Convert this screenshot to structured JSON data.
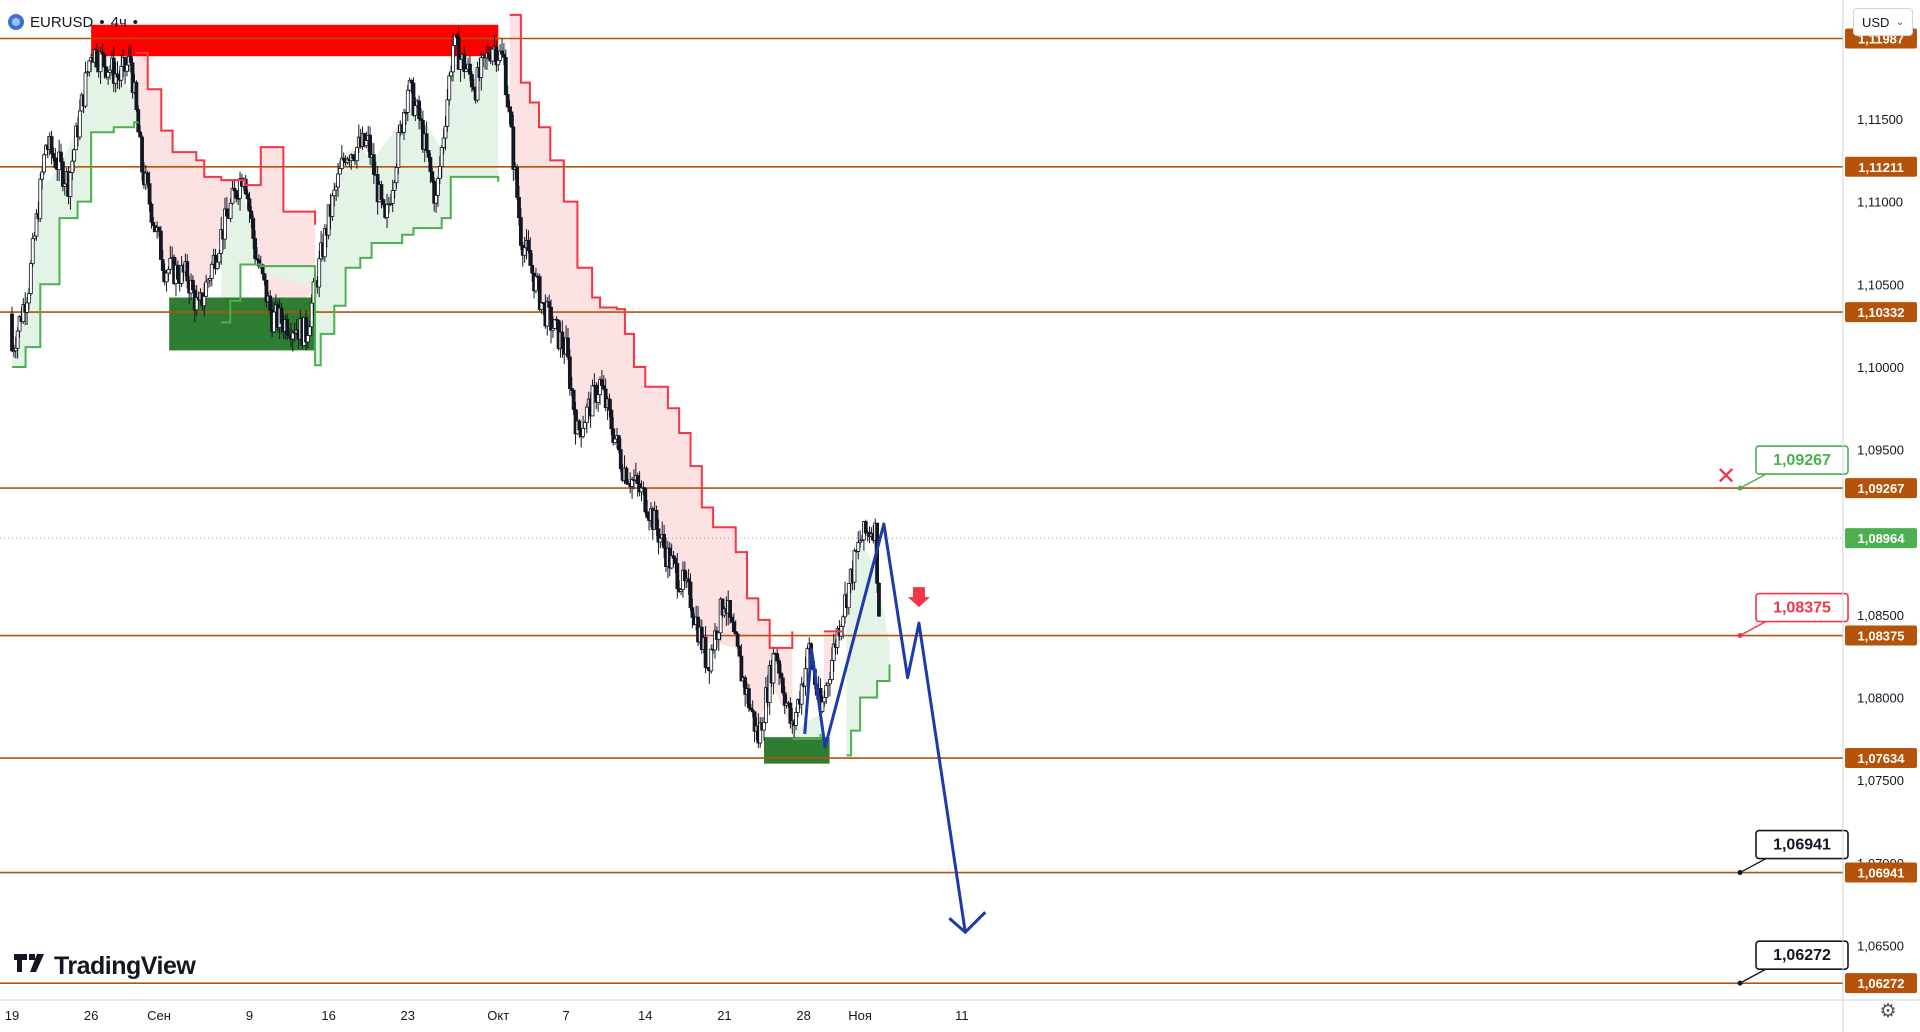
{
  "header": {
    "symbol": "EURUSD",
    "separator": "•",
    "timeframe": "4ч",
    "trail": "•"
  },
  "toolbar": {
    "currency": "USD",
    "currency_chevron": "⌄"
  },
  "branding": {
    "name": "TradingView",
    "mark": "17"
  },
  "icons": {
    "settings": "gear-icon",
    "symbol_logo": "globe-icon"
  },
  "colors": {
    "level_line": "#b45309",
    "level_tag": "#b45309",
    "resistance_zone": "#ff0000",
    "support_zone": "#2e7d32",
    "trail_red": "#f23645",
    "trail_green": "#4caf50",
    "fill_red": "#fde2e4",
    "fill_green": "#e3f3e6",
    "projection": "#1c3aa9",
    "current_price": "#4caf50",
    "candle": "#131722"
  },
  "chart_data": {
    "type": "candlestick",
    "symbol": "EURUSD",
    "timeframe": "4ч",
    "currency": "USD",
    "ylim": [
      1.0617,
      1.1222
    ],
    "xlim_days": [
      0,
      130.7
    ],
    "x_ticks": [
      {
        "label": "19",
        "day": 0
      },
      {
        "label": "26",
        "day": 7
      },
      {
        "label": "Сен",
        "day": 13
      },
      {
        "label": "9",
        "day": 21
      },
      {
        "label": "16",
        "day": 28
      },
      {
        "label": "23",
        "day": 35
      },
      {
        "label": "Окт",
        "day": 43
      },
      {
        "label": "7",
        "day": 49
      },
      {
        "label": "14",
        "day": 56
      },
      {
        "label": "21",
        "day": 63
      },
      {
        "label": "28",
        "day": 70
      },
      {
        "label": "Ноя",
        "day": 75
      },
      {
        "label": "11",
        "day": 84
      }
    ],
    "y_ticks": [
      "1,11500",
      "1,11000",
      "1,10500",
      "1,10000",
      "1,09500",
      "1,08500",
      "1,08000",
      "1,07500",
      "1,07000",
      "1,06500"
    ],
    "levels": [
      {
        "label": "1,11987",
        "value": 1.11987
      },
      {
        "label": "1,11211",
        "value": 1.11211
      },
      {
        "label": "1,10332",
        "value": 1.10332
      },
      {
        "label": "1,09267",
        "value": 1.09267
      },
      {
        "label": "1,08375",
        "value": 1.08375
      },
      {
        "label": "1,07634",
        "value": 1.07634
      },
      {
        "label": "1,06941",
        "value": 1.06941
      },
      {
        "label": "1,06272",
        "value": 1.06272
      }
    ],
    "current_price": {
      "label": "1,08964",
      "value": 1.08964
    },
    "callouts": [
      {
        "label": "1,09267",
        "value": 1.09267,
        "style": "green",
        "marker": "✕"
      },
      {
        "label": "1,08375",
        "value": 1.08375,
        "style": "red",
        "marker": "arrow-down"
      },
      {
        "label": "1,06941",
        "value": 1.06941,
        "style": "black"
      },
      {
        "label": "1,06272",
        "value": 1.06272,
        "style": "black"
      }
    ],
    "zones": [
      {
        "kind": "resistance",
        "day_start": 7.0,
        "day_end": 43.0,
        "top": 1.1207,
        "bottom": 1.1188
      },
      {
        "kind": "support",
        "day_start": 13.9,
        "day_end": 26.8,
        "top": 1.1042,
        "bottom": 1.101
      },
      {
        "kind": "support",
        "day_start": 66.5,
        "day_end": 72.3,
        "top": 1.0776,
        "bottom": 1.076
      }
    ],
    "projection": [
      {
        "day": 70.1,
        "price": 1.0778
      },
      {
        "day": 70.7,
        "price": 1.0829
      },
      {
        "day": 71.9,
        "price": 1.077
      },
      {
        "day": 77.1,
        "price": 1.0905
      },
      {
        "day": 79.2,
        "price": 1.0812
      },
      {
        "day": 80.2,
        "price": 1.0845
      },
      {
        "day": 84.3,
        "price": 1.0658
      }
    ],
    "trail_steps": [
      {
        "side": "up",
        "points": [
          [
            0.0,
            1.1
          ],
          [
            1.2,
            1.1012
          ],
          [
            2.5,
            1.105
          ],
          [
            4.2,
            1.109
          ],
          [
            5.8,
            1.11
          ],
          [
            7.0,
            1.1142
          ],
          [
            9.0,
            1.1145
          ],
          [
            10.8,
            1.1148
          ],
          [
            11.2,
            1.1148
          ]
        ]
      },
      {
        "side": "down",
        "points": [
          [
            10.9,
            1.119
          ],
          [
            12.0,
            1.1168
          ],
          [
            13.2,
            1.1143
          ],
          [
            14.2,
            1.113
          ],
          [
            16.3,
            1.1125
          ],
          [
            17.0,
            1.1115
          ],
          [
            18.5,
            1.1113
          ],
          [
            20.6,
            1.111
          ],
          [
            22.0,
            1.1133
          ],
          [
            24.0,
            1.1094
          ],
          [
            26.8,
            1.1086
          ]
        ]
      },
      {
        "side": "up",
        "points": [
          [
            18.5,
            1.1027
          ],
          [
            19.3,
            1.104
          ],
          [
            20.2,
            1.1062
          ],
          [
            22.0,
            1.1061
          ],
          [
            26.8,
            1.1001
          ],
          [
            27.3,
            1.102
          ],
          [
            28.5,
            1.1037
          ],
          [
            29.5,
            1.106
          ],
          [
            30.8,
            1.1066
          ],
          [
            31.8,
            1.1075
          ],
          [
            34.5,
            1.108
          ],
          [
            35.5,
            1.1084
          ],
          [
            38.0,
            1.109
          ],
          [
            38.8,
            1.1115
          ],
          [
            43.0,
            1.1112
          ]
        ]
      },
      {
        "side": "down",
        "points": [
          [
            44.0,
            1.1213
          ],
          [
            45.0,
            1.1172
          ],
          [
            45.8,
            1.116
          ],
          [
            46.6,
            1.1145
          ],
          [
            47.6,
            1.1125
          ],
          [
            48.8,
            1.11
          ],
          [
            50.0,
            1.106
          ],
          [
            51.3,
            1.1042
          ],
          [
            52.0,
            1.1036
          ],
          [
            53.5,
            1.1035
          ],
          [
            54.2,
            1.102
          ],
          [
            55.0,
            1.1
          ],
          [
            56.0,
            1.0988
          ],
          [
            58.0,
            1.0975
          ],
          [
            59.0,
            1.096
          ],
          [
            60.0,
            1.094
          ],
          [
            61.0,
            1.0915
          ],
          [
            62.0,
            1.0903
          ],
          [
            64.0,
            1.0888
          ],
          [
            65.0,
            1.086
          ],
          [
            66.0,
            1.0847
          ],
          [
            67.0,
            1.083
          ],
          [
            69.0,
            1.084
          ]
        ]
      },
      {
        "side": "up",
        "points": [
          [
            69.0,
            1.0775
          ],
          [
            71.5,
            1.0778
          ]
        ]
      },
      {
        "side": "down",
        "points": [
          [
            71.8,
            1.084
          ],
          [
            73.5,
            1.084
          ]
        ]
      },
      {
        "side": "up",
        "points": [
          [
            73.8,
            1.0765
          ],
          [
            74.2,
            1.078
          ],
          [
            75.0,
            1.08
          ],
          [
            76.5,
            1.081
          ],
          [
            77.5,
            1.081
          ],
          [
            77.6,
            1.082
          ]
        ]
      }
    ],
    "candles": {
      "seed": 7,
      "start_price": 1.1032,
      "path": [
        [
          0,
          1.101
        ],
        [
          1.5,
          1.105
        ],
        [
          3.0,
          1.1135
        ],
        [
          5.0,
          1.1112
        ],
        [
          7.0,
          1.1192
        ],
        [
          9.5,
          1.1175
        ],
        [
          10.5,
          1.1185
        ],
        [
          11.5,
          1.112
        ],
        [
          13.5,
          1.106
        ],
        [
          15.5,
          1.1055
        ],
        [
          16.5,
          1.1034
        ],
        [
          18.5,
          1.108
        ],
        [
          20.5,
          1.112
        ],
        [
          21.5,
          1.107
        ],
        [
          23.0,
          1.103
        ],
        [
          25.0,
          1.1025
        ],
        [
          26.0,
          1.102
        ],
        [
          28.0,
          1.109
        ],
        [
          29.5,
          1.113
        ],
        [
          31.5,
          1.1135
        ],
        [
          33.0,
          1.1085
        ],
        [
          35.0,
          1.117
        ],
        [
          36.0,
          1.115
        ],
        [
          37.5,
          1.11
        ],
        [
          39.0,
          1.1195
        ],
        [
          41.0,
          1.117
        ],
        [
          42.5,
          1.1195
        ],
        [
          43.5,
          1.1185
        ],
        [
          45.0,
          1.108
        ],
        [
          47.0,
          1.1035
        ],
        [
          49.0,
          1.101
        ],
        [
          50.0,
          1.096
        ],
        [
          52.0,
          1.099
        ],
        [
          54.0,
          1.094
        ],
        [
          56.0,
          1.092
        ],
        [
          58.0,
          1.0885
        ],
        [
          60.0,
          1.086
        ],
        [
          61.5,
          1.082
        ],
        [
          63.0,
          1.086
        ],
        [
          64.5,
          1.0815
        ],
        [
          66.0,
          1.0775
        ],
        [
          67.5,
          1.083
        ],
        [
          69.0,
          1.078
        ],
        [
          70.5,
          1.083
        ],
        [
          71.5,
          1.079
        ],
        [
          73.0,
          1.084
        ],
        [
          75.0,
          1.0895
        ],
        [
          76.3,
          1.0905
        ],
        [
          76.8,
          1.0835
        ]
      ]
    }
  }
}
